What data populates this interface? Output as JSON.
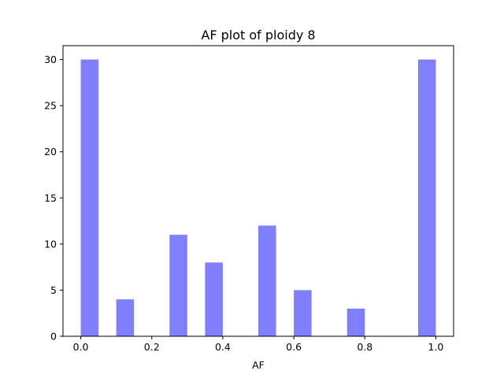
{
  "chart_data": {
    "type": "bar",
    "title": "AF plot of ploidy 8",
    "xlabel": "AF",
    "ylabel": "",
    "bar_color": "#8080ff",
    "bins": [
      {
        "x_start": 0.0,
        "x_end": 0.05,
        "value": 30
      },
      {
        "x_start": 0.1,
        "x_end": 0.15,
        "value": 4
      },
      {
        "x_start": 0.25,
        "x_end": 0.3,
        "value": 11
      },
      {
        "x_start": 0.35,
        "x_end": 0.4,
        "value": 8
      },
      {
        "x_start": 0.5,
        "x_end": 0.55,
        "value": 12
      },
      {
        "x_start": 0.6,
        "x_end": 0.65,
        "value": 5
      },
      {
        "x_start": 0.75,
        "x_end": 0.8,
        "value": 3
      },
      {
        "x_start": 0.95,
        "x_end": 1.0,
        "value": 30
      }
    ],
    "xlim": [
      -0.05,
      1.05
    ],
    "ylim": [
      0,
      31.5
    ],
    "xticks": [
      0.0,
      0.2,
      0.4,
      0.6,
      0.8,
      1.0
    ],
    "xtick_labels": [
      "0.0",
      "0.2",
      "0.4",
      "0.6",
      "0.8",
      "1.0"
    ],
    "yticks": [
      0,
      5,
      10,
      15,
      20,
      25,
      30
    ],
    "ytick_labels": [
      "0",
      "5",
      "10",
      "15",
      "20",
      "25",
      "30"
    ],
    "grid": false,
    "legend": "none"
  }
}
